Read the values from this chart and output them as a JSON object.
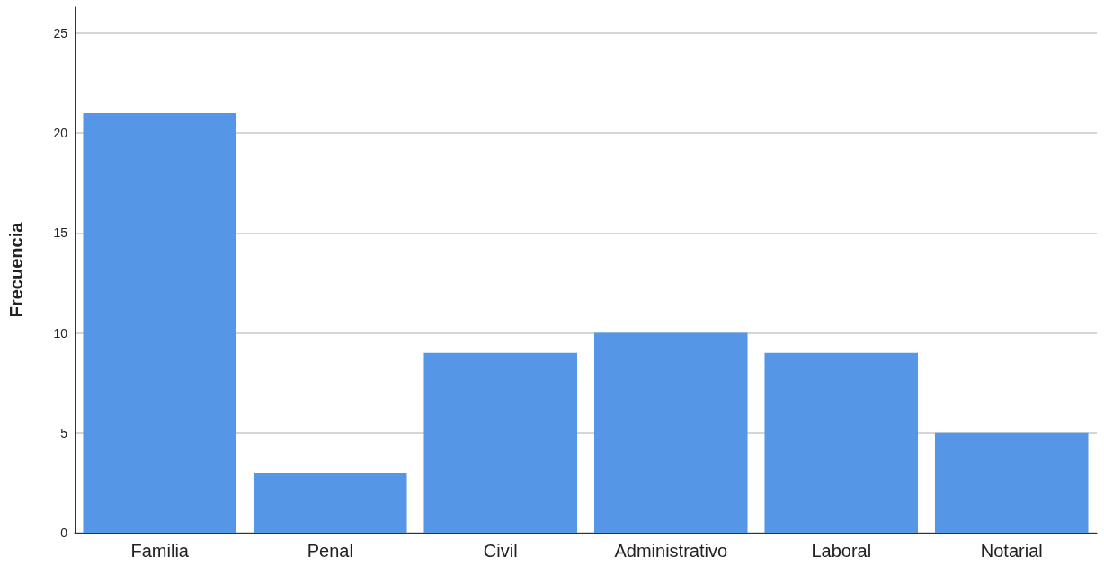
{
  "chart_data": {
    "type": "bar",
    "ylabel": "Frecuencia",
    "categories": [
      "Familia",
      "Penal",
      "Civil",
      "Administrativo",
      "Laboral",
      "Notarial"
    ],
    "values": [
      21,
      3,
      9,
      10,
      9,
      5
    ],
    "color": "#5596e6",
    "ylim": [
      0,
      26.3
    ],
    "yticks": [
      0,
      5,
      10,
      15,
      20,
      25
    ],
    "grid": "y"
  }
}
